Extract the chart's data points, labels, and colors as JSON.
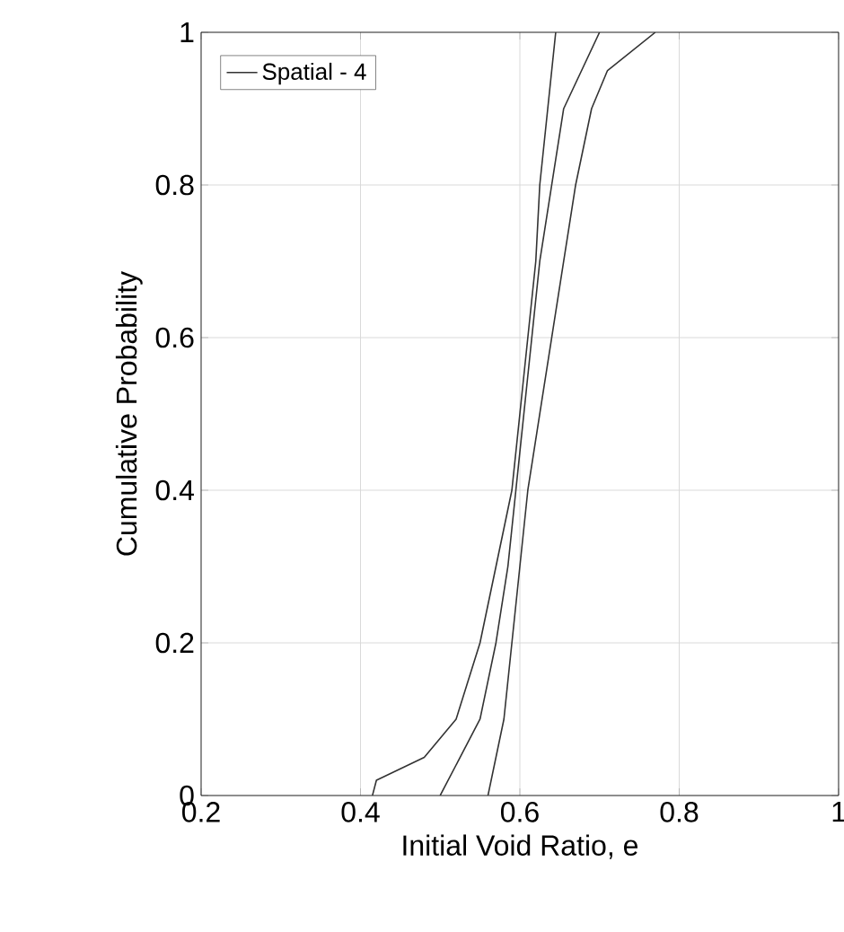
{
  "chart_data": {
    "type": "line",
    "xlabel": "Initial Void Ratio, e",
    "ylabel": "Cumulative Probability",
    "xlim": [
      0.2,
      1
    ],
    "ylim": [
      0,
      1
    ],
    "xticks": [
      0.2,
      0.4,
      0.6,
      0.8,
      1
    ],
    "yticks": [
      0,
      0.2,
      0.4,
      0.6,
      0.8,
      1
    ],
    "grid": true,
    "legend": "top left",
    "series": [
      {
        "name": "Spatial - 4",
        "color": "#333333",
        "x": [
          0.5,
          0.55,
          0.57,
          0.585,
          0.595,
          0.605,
          0.615,
          0.625,
          0.64,
          0.655,
          0.7
        ],
        "values": [
          0,
          0.1,
          0.2,
          0.3,
          0.4,
          0.5,
          0.6,
          0.7,
          0.8,
          0.9,
          1
        ]
      },
      {
        "color": "#333333",
        "x": [
          0.415,
          0.42,
          0.48,
          0.52,
          0.55,
          0.57,
          0.59,
          0.6,
          0.61,
          0.62,
          0.625,
          0.635,
          0.645
        ],
        "values": [
          0,
          0.02,
          0.05,
          0.1,
          0.2,
          0.3,
          0.4,
          0.5,
          0.6,
          0.7,
          0.8,
          0.9,
          1
        ]
      },
      {
        "color": "#333333",
        "x": [
          0.56,
          0.58,
          0.59,
          0.6,
          0.61,
          0.625,
          0.64,
          0.655,
          0.67,
          0.69,
          0.71,
          0.77
        ],
        "values": [
          0,
          0.1,
          0.2,
          0.3,
          0.4,
          0.5,
          0.6,
          0.7,
          0.8,
          0.9,
          0.95,
          1
        ]
      }
    ]
  }
}
